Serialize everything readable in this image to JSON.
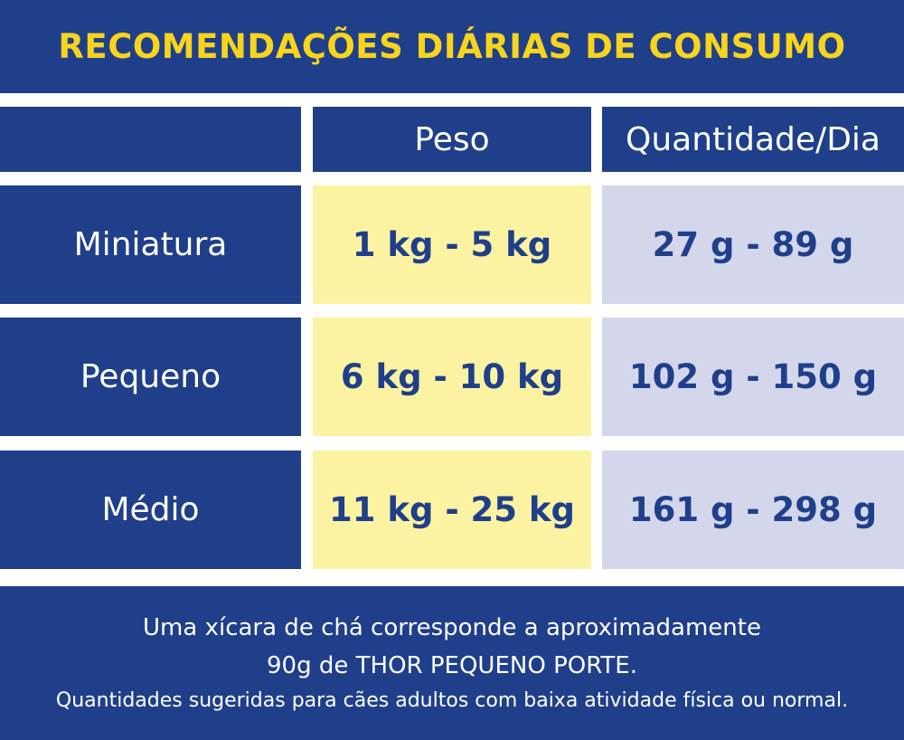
{
  "title": "RECOMENDAÇÕES DIÁRIAS DE CONSUMO",
  "table": {
    "headers": [
      "",
      "Peso",
      "Quantidade/Dia"
    ],
    "rows": [
      {
        "size": "Miniatura",
        "weight": "1 kg - 5 kg",
        "amount": "27 g - 89 g"
      },
      {
        "size": "Pequeno",
        "weight": "6 kg - 10 kg",
        "amount": "102 g - 150 g"
      },
      {
        "size": "Médio",
        "weight": "11 kg - 25 kg",
        "amount": "161 g - 298 g"
      }
    ]
  },
  "footer": {
    "line1": "Uma xícara de chá corresponde a aproximadamente",
    "line2": "90g de THOR PEQUENO PORTE.",
    "line3": "Quantidades sugeridas para cães adultos com baixa atividade física ou normal."
  },
  "colors": {
    "navy": "#1f3f8a",
    "title_yellow": "#f8d51c",
    "weight_cell": "#fbf3a2",
    "amount_cell": "#d4d7eb"
  }
}
